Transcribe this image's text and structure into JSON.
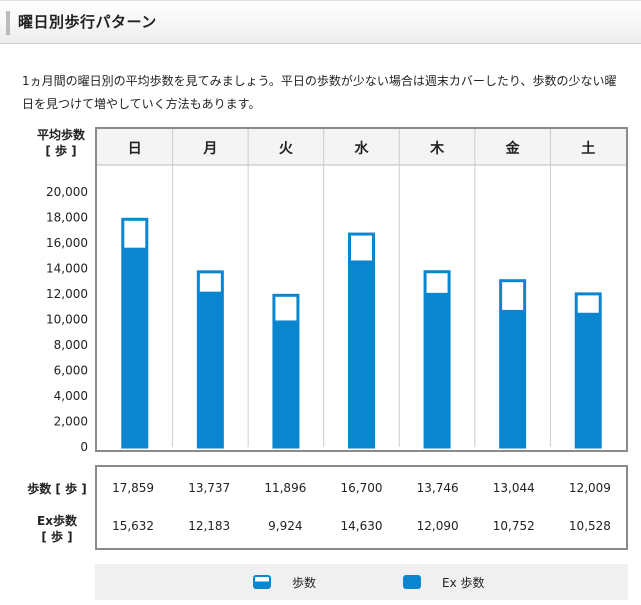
{
  "header": {
    "title": "曜日別歩行パターン"
  },
  "description": "1ヵ月間の曜日別の平均歩数を見てみましょう。平日の歩数が少ない場合は週末カバーしたり、歩数の少ない曜日を見つけて増やしていく方法もあります。",
  "axis": {
    "title_line1": "平均歩数",
    "title_line2": "[ 歩 ]"
  },
  "table": {
    "row1_label": "歩数 [ 歩 ]",
    "row2_label_line1": "Ex歩数",
    "row2_label_line2": "[ 歩 ]",
    "steps": [
      "17,859",
      "13,737",
      "11,896",
      "16,700",
      "13,746",
      "13,044",
      "12,009"
    ],
    "ex_steps": [
      "15,632",
      "12,183",
      "9,924",
      "14,630",
      "12,090",
      "10,752",
      "10,528"
    ]
  },
  "legend": {
    "steps_label": "歩数",
    "ex_label": "Ex 歩数"
  },
  "colors": {
    "bar_blue": "#0a85cf",
    "grid": "#cccccc",
    "border": "#8a8a8a"
  },
  "chart_data": {
    "type": "bar",
    "categories": [
      "日",
      "月",
      "火",
      "水",
      "木",
      "金",
      "土"
    ],
    "series": [
      {
        "name": "歩数",
        "values": [
          17859,
          13737,
          11896,
          16700,
          13746,
          13044,
          12009
        ]
      },
      {
        "name": "Ex 歩数",
        "values": [
          15632,
          12183,
          9924,
          14630,
          12090,
          10752,
          10528
        ]
      }
    ],
    "yticks": [
      "0",
      "2,000",
      "4,000",
      "6,000",
      "8,000",
      "10,000",
      "12,000",
      "14,000",
      "16,000",
      "18,000",
      "20,000"
    ],
    "ylim": [
      0,
      20000
    ],
    "grid": "vertical",
    "legend_position": "bottom"
  }
}
